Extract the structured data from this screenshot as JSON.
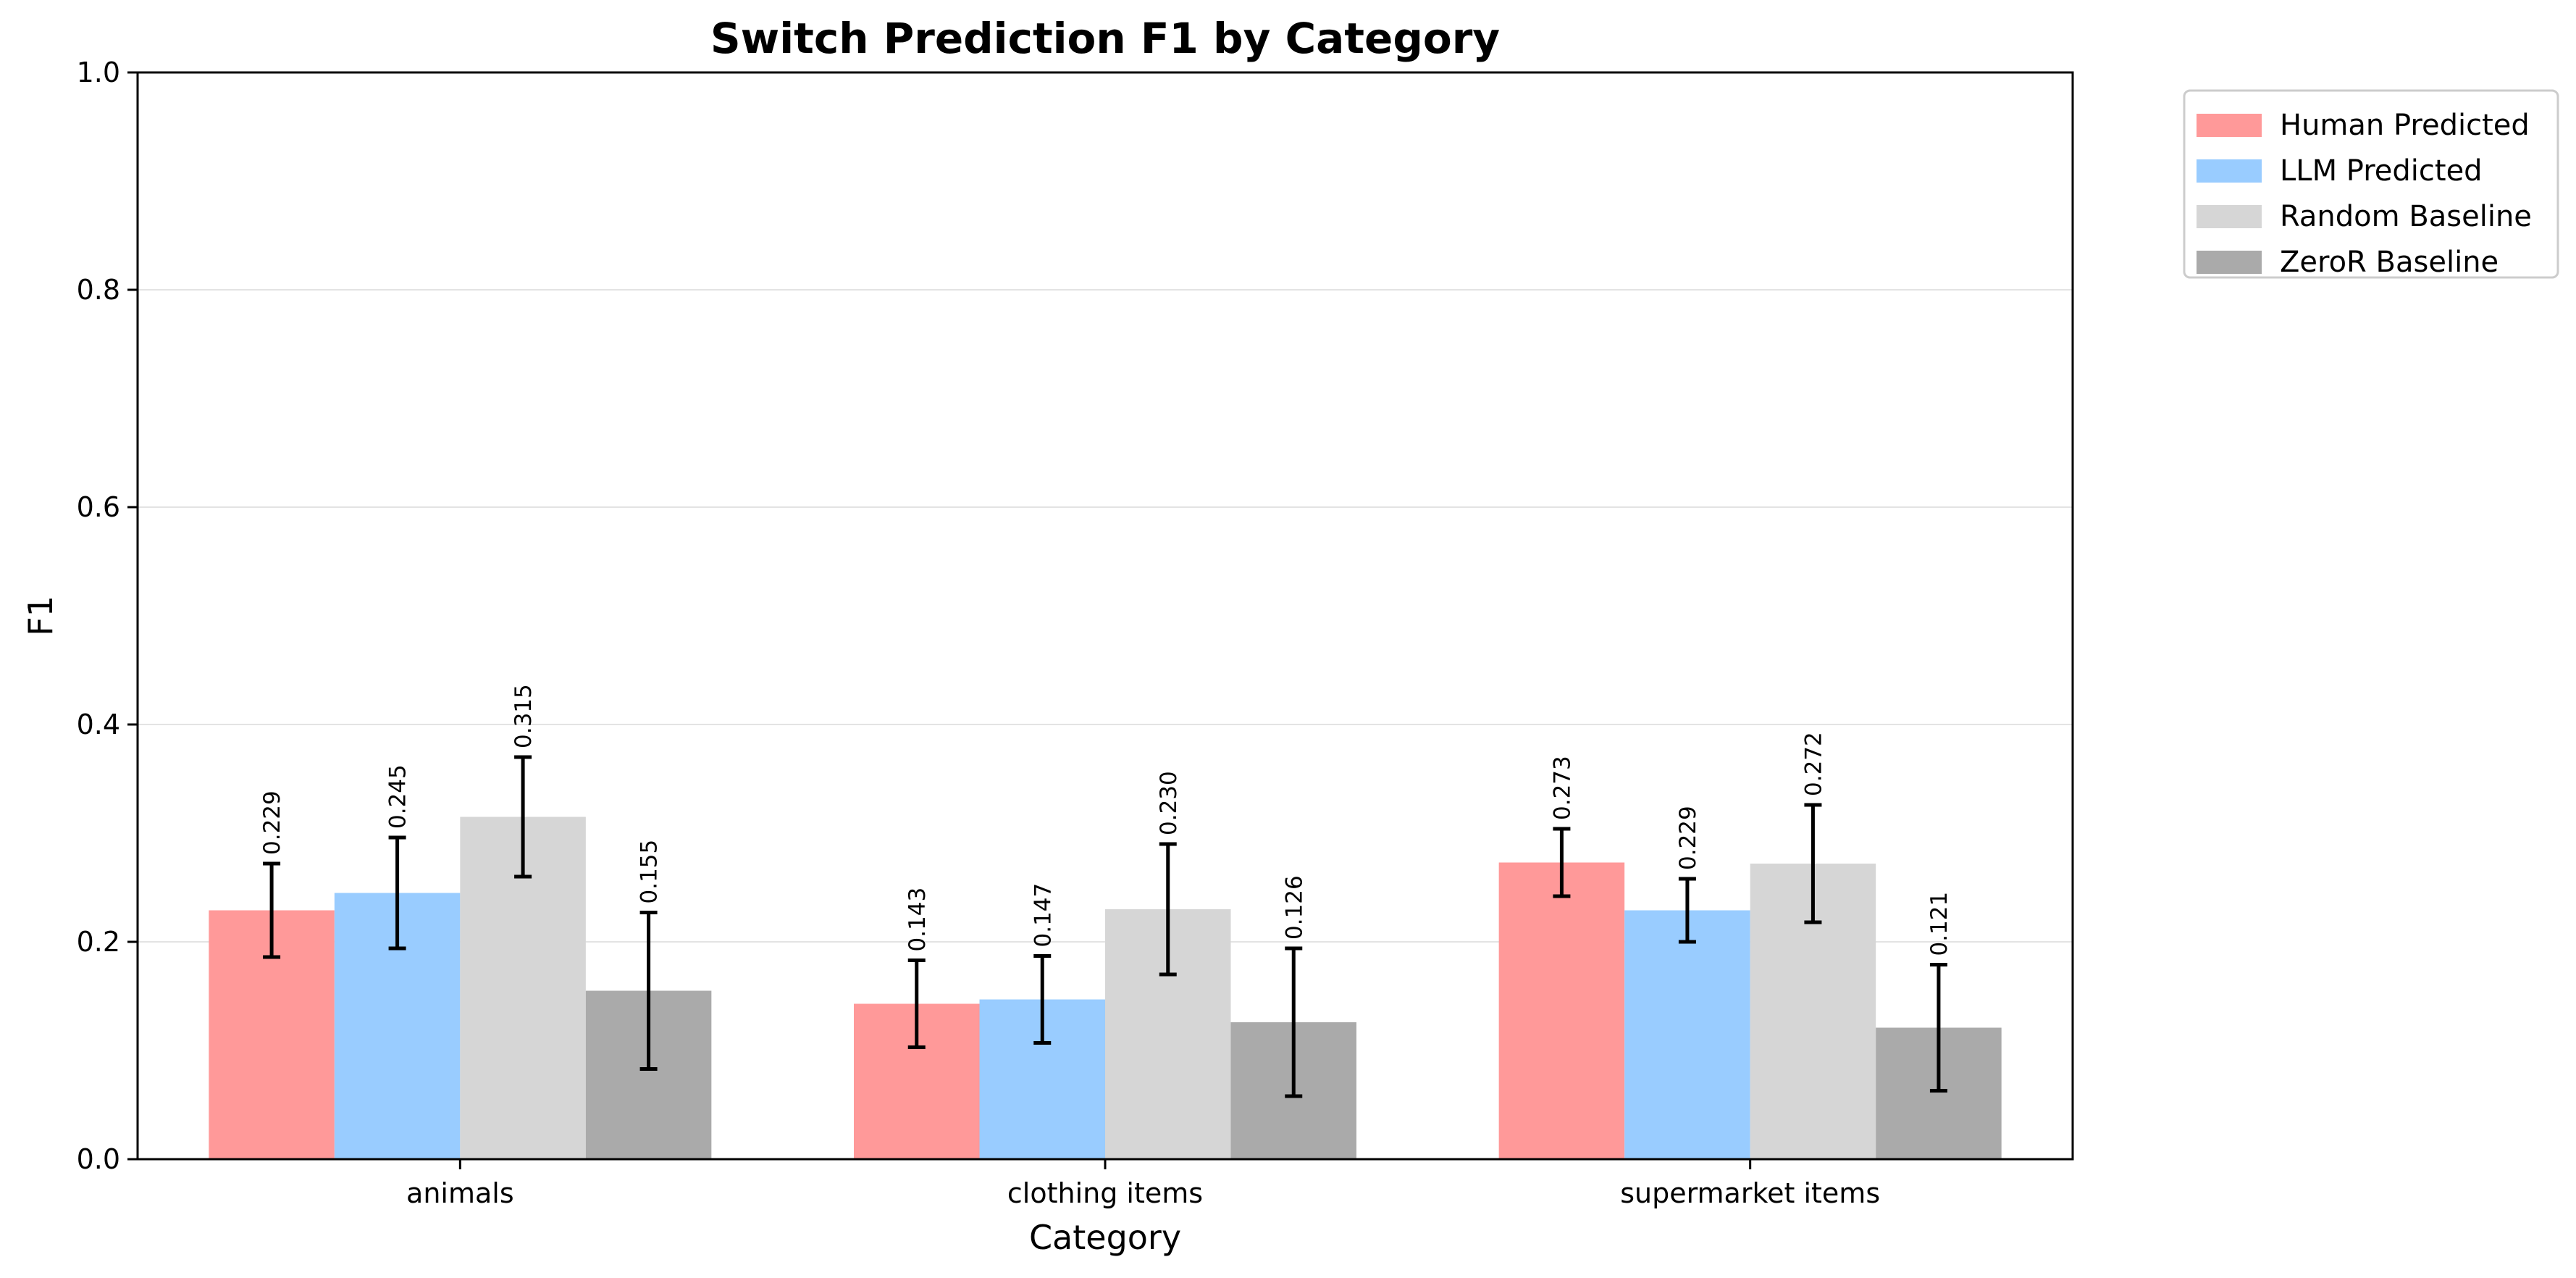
{
  "chart_data": {
    "type": "bar",
    "title": "Switch Prediction F1 by Category",
    "xlabel": "Category",
    "ylabel": "F1",
    "ylim": [
      0,
      1.0
    ],
    "yticks": [
      0.0,
      0.2,
      0.4,
      0.6,
      0.8,
      1.0
    ],
    "ytick_labels": [
      "0.0",
      "0.2",
      "0.4",
      "0.6",
      "0.8",
      "1.0"
    ],
    "grid": "horizontal",
    "legend_position": "outside top-right",
    "categories": [
      "animals",
      "clothing items",
      "supermarket items"
    ],
    "series": [
      {
        "name": "Human Predicted",
        "color": "#ff9999",
        "values": [
          0.229,
          0.143,
          0.273
        ],
        "error": [
          0.043,
          0.04,
          0.031
        ],
        "labels": [
          "0.229",
          "0.143",
          "0.273"
        ]
      },
      {
        "name": "LLM Predicted",
        "color": "#99ccff",
        "values": [
          0.245,
          0.147,
          0.229
        ],
        "error": [
          0.051,
          0.04,
          0.029
        ],
        "labels": [
          "0.245",
          "0.147",
          "0.229"
        ]
      },
      {
        "name": "Random Baseline",
        "color": "#d6d6d6",
        "values": [
          0.315,
          0.23,
          0.272
        ],
        "error": [
          0.055,
          0.06,
          0.054
        ],
        "labels": [
          "0.315",
          "0.230",
          "0.272"
        ]
      },
      {
        "name": "ZeroR Baseline",
        "color": "#aaaaaa",
        "values": [
          0.155,
          0.126,
          0.121
        ],
        "error": [
          0.072,
          0.068,
          0.058
        ],
        "labels": [
          "0.155",
          "0.126",
          "0.121"
        ]
      }
    ]
  }
}
